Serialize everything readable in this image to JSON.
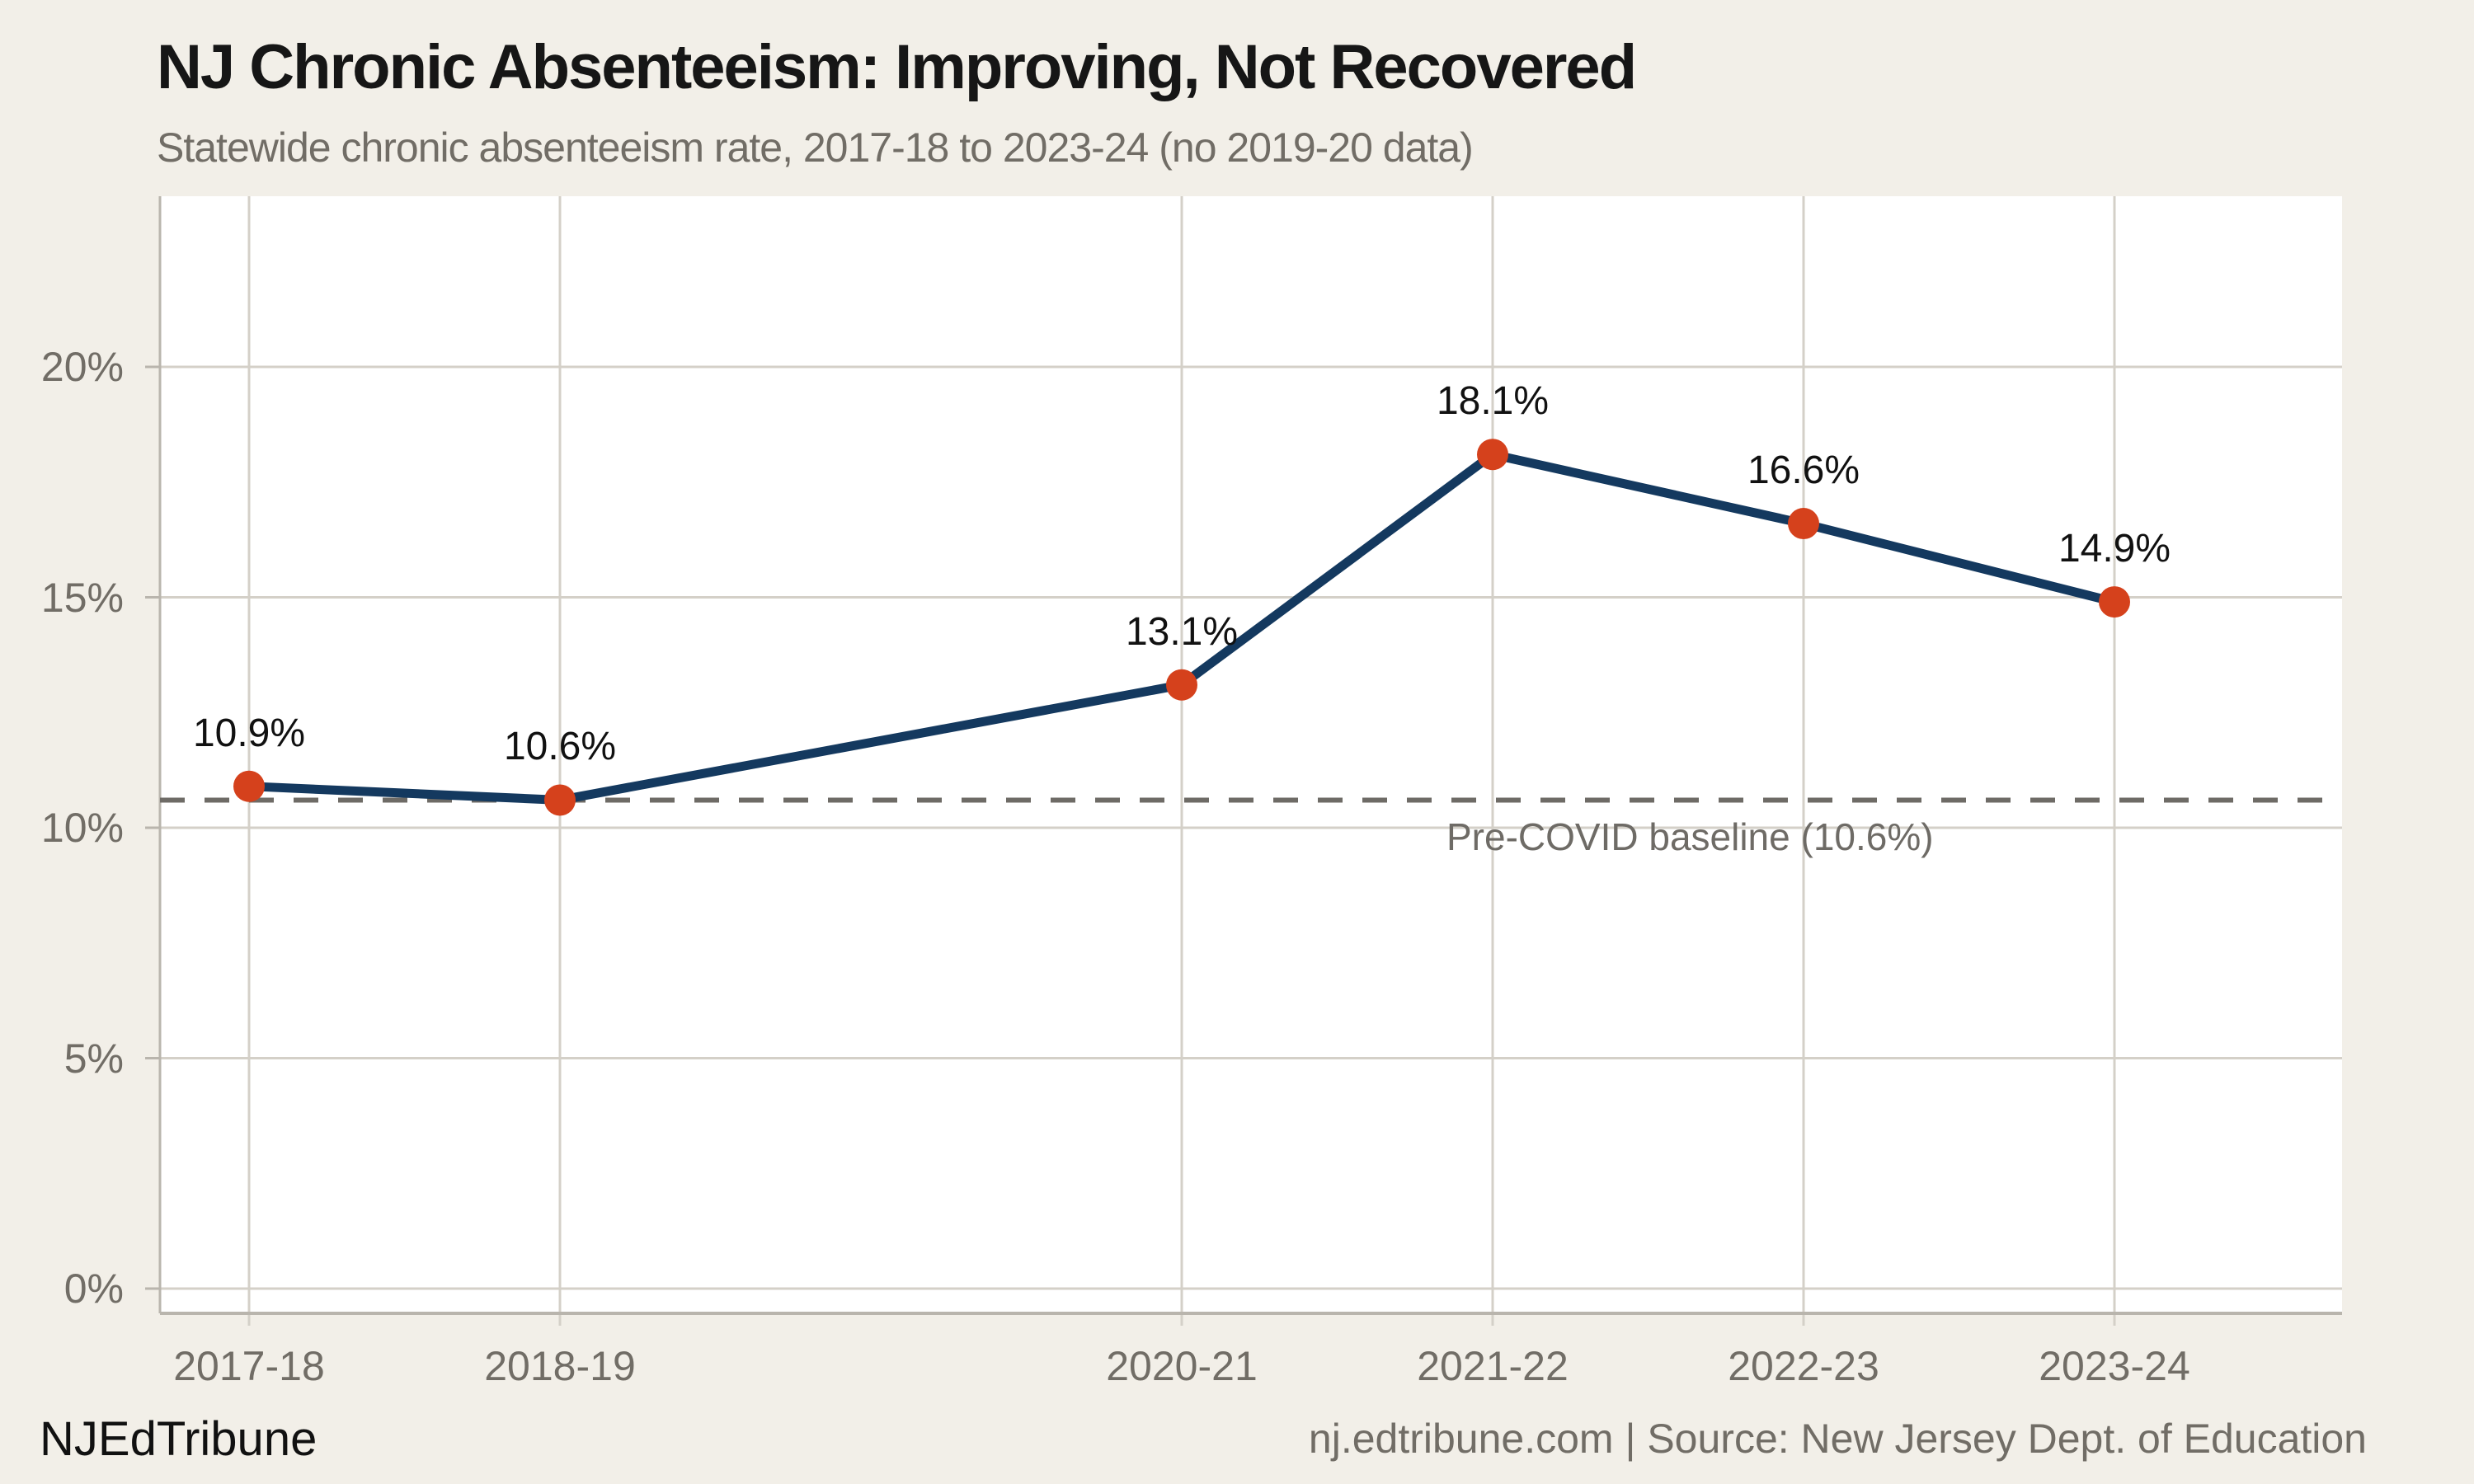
{
  "header": {
    "title": "NJ Chronic Absenteeism: Improving, Not Recovered",
    "subtitle": "Statewide chronic absenteeism rate, 2017-18 to 2023-24 (no 2019-20 data)"
  },
  "footer": {
    "brand": "NJEdTribune",
    "source": "nj.edtribune.com | Source: New Jersey Dept. of Education"
  },
  "colors": {
    "background": "#f2efe8",
    "plot_background": "#ffffff",
    "grid": "#d4d0c8",
    "axis": "#b9b5ad",
    "line": "#14395f",
    "marker": "#d5411c",
    "baseline": "#6e6b66",
    "text_muted": "#716d66",
    "text_dark": "#161616"
  },
  "chart_data": {
    "type": "line",
    "title": "NJ Chronic Absenteeism: Improving, Not Recovered",
    "subtitle": "Statewide chronic absenteeism rate, 2017-18 to 2023-24 (no 2019-20 data)",
    "categories": [
      "2017-18",
      "2018-19",
      "2020-21",
      "2021-22",
      "2022-23",
      "2023-24"
    ],
    "values": [
      10.9,
      10.6,
      13.1,
      18.1,
      16.6,
      14.9
    ],
    "point_labels": [
      "10.9%",
      "10.6%",
      "13.1%",
      "18.1%",
      "16.6%",
      "14.9%"
    ],
    "missing_year": "2019-20",
    "x_axis_note": "school years on a linear time scale; 2019-20 gap preserved",
    "y_ticks": [
      {
        "value": 20,
        "label": "20%"
      },
      {
        "value": 15,
        "label": "15%"
      },
      {
        "value": 10,
        "label": "10%"
      },
      {
        "value": 5,
        "label": "5%"
      },
      {
        "value": 0,
        "label": "0%"
      }
    ],
    "ylim": [
      0,
      23.7
    ],
    "xlabel": "",
    "ylabel": "",
    "grid": true,
    "legend": false,
    "baseline": {
      "value": 10.6,
      "label": "Pre-COVID baseline (10.6%)",
      "style": "dashed"
    }
  }
}
